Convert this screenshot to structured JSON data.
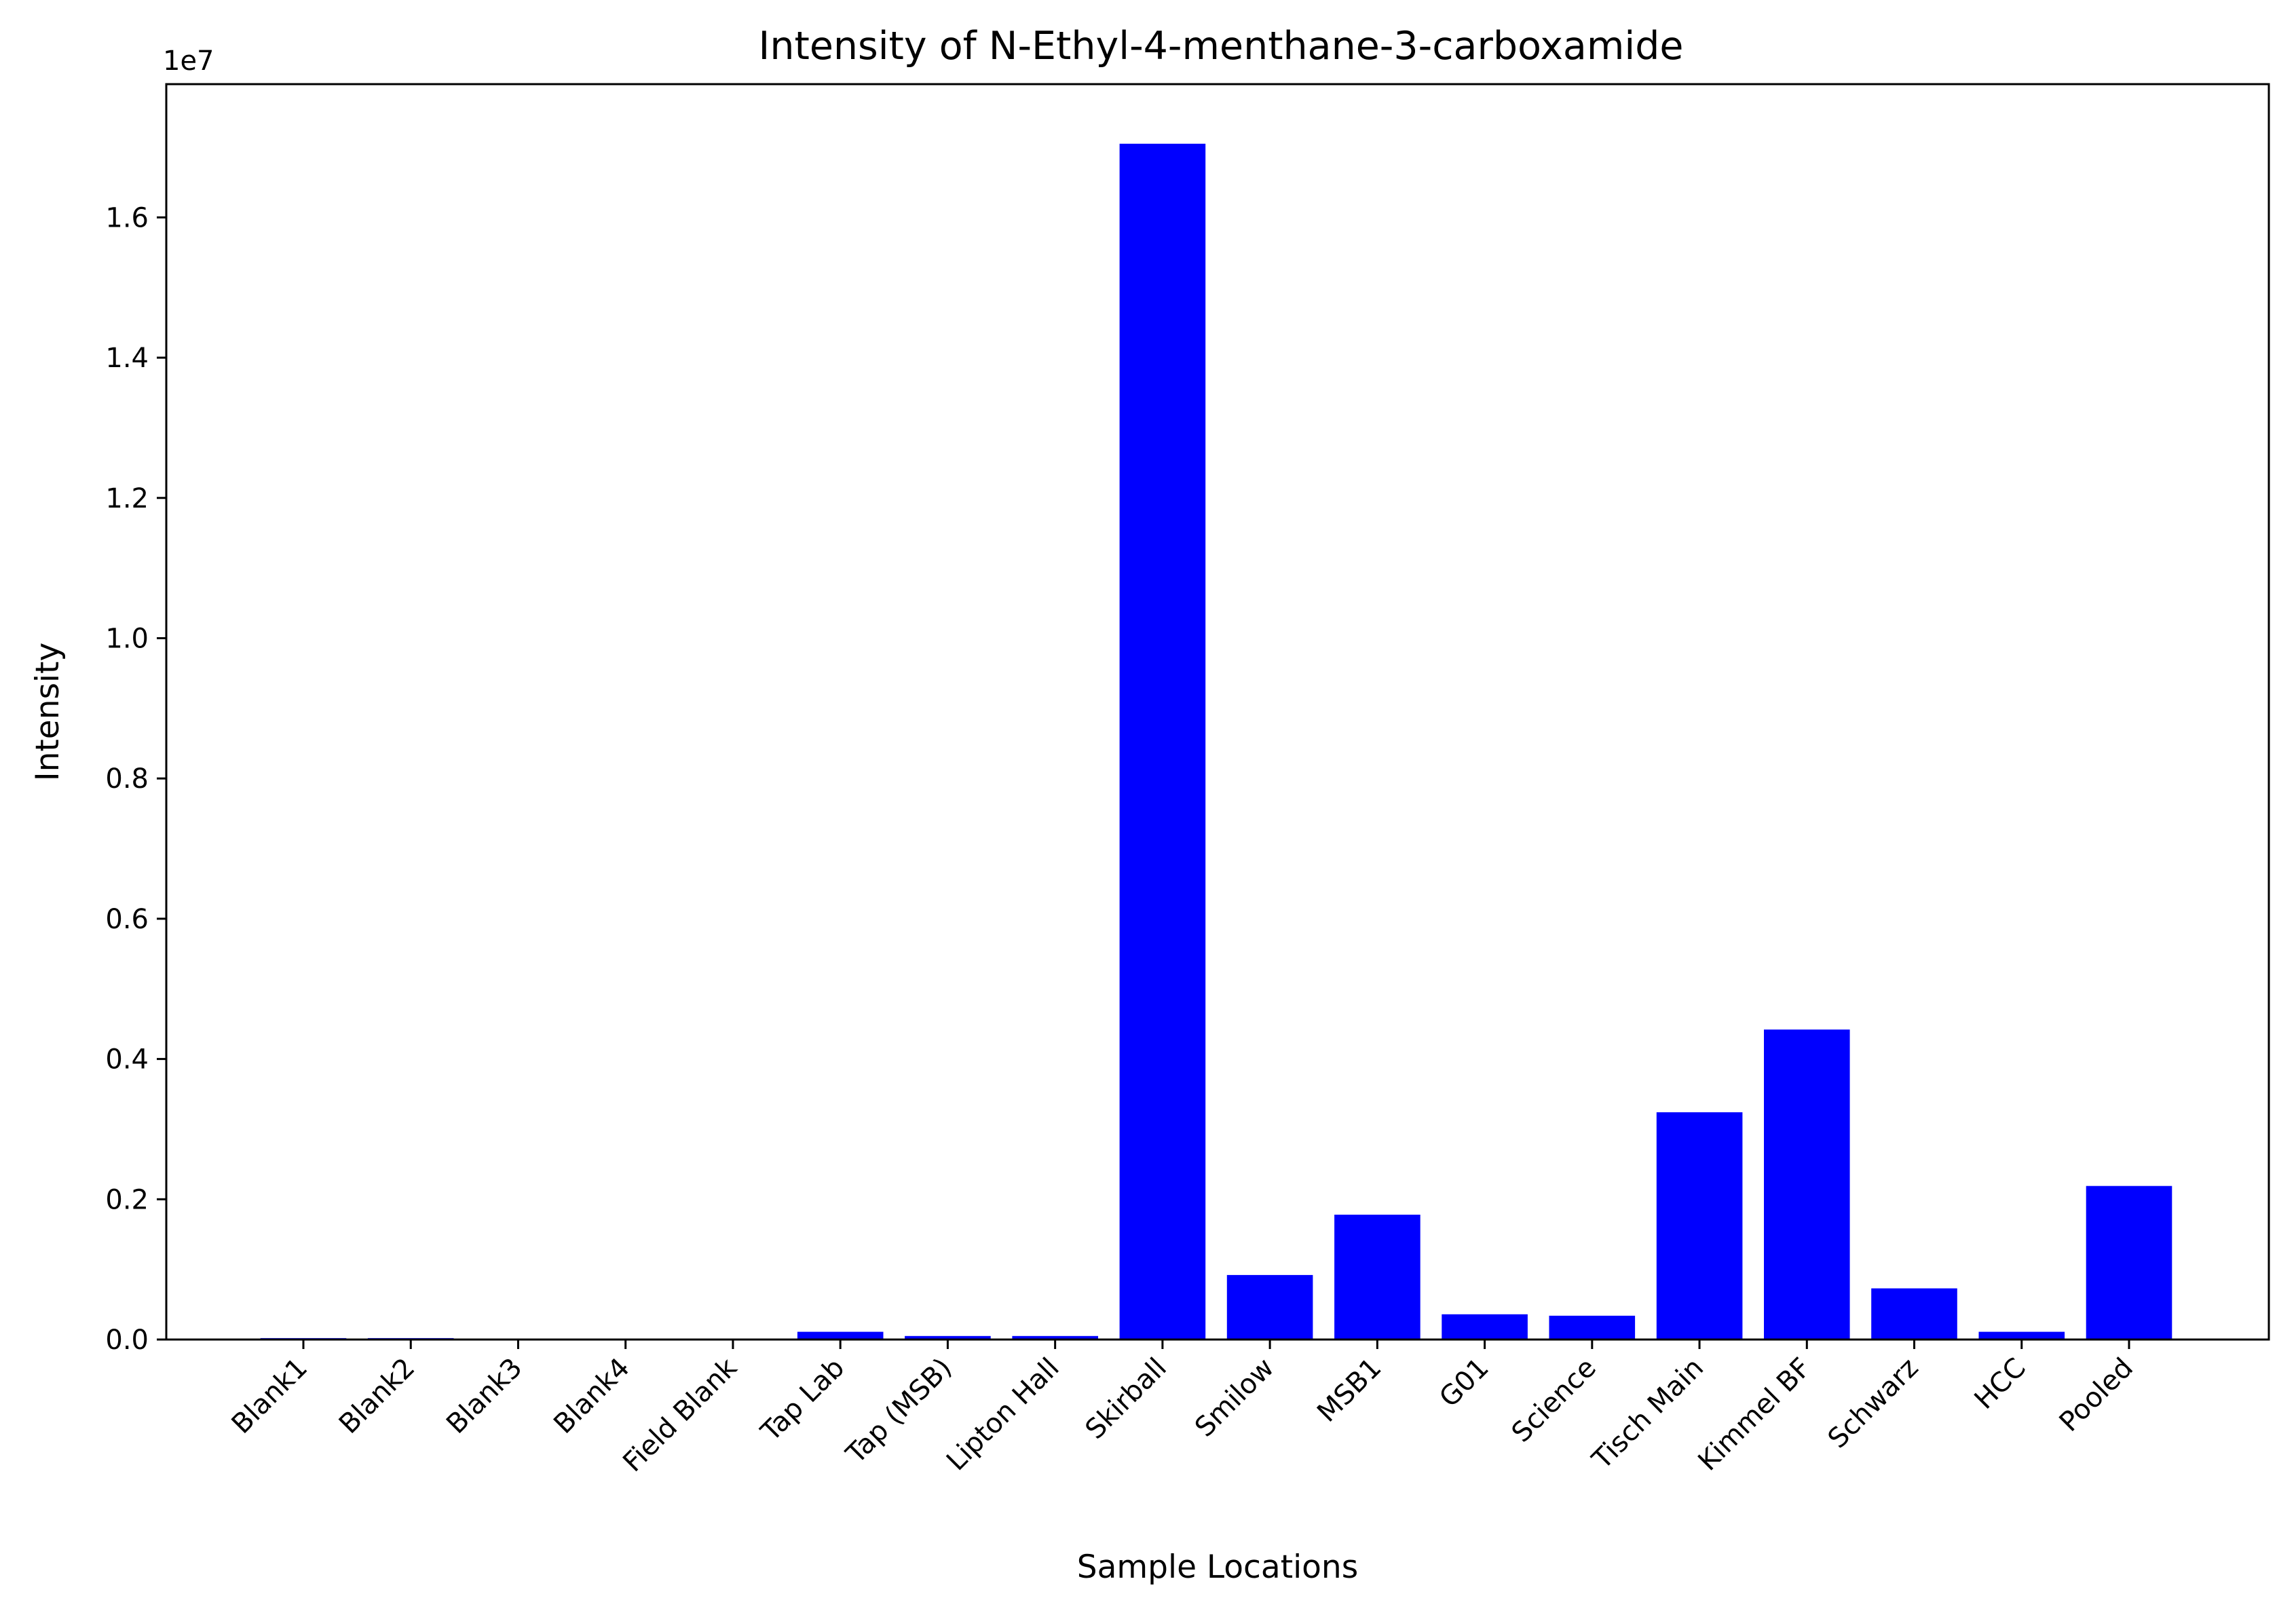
{
  "chart_data": {
    "type": "bar",
    "title": "Intensity of N-Ethyl-4-menthane-3-carboxamide",
    "xlabel": "Sample Locations",
    "ylabel": "Intensity",
    "offset_label": "1e7",
    "categories": [
      "Blank1",
      "Blank2",
      "Blank3",
      "Blank4",
      "Field Blank",
      "Tap Lab",
      "Tap (MSB)",
      "Lipton Hall",
      "Skirball",
      "Smilow",
      "MSB1",
      "G01",
      "Science",
      "Tisch Main",
      "Kimmel BF",
      "Schwarz",
      "HCC",
      "Pooled"
    ],
    "values": [
      20000,
      20000,
      0,
      0,
      0,
      110000,
      50000,
      50000,
      17050000,
      920000,
      1780000,
      360000,
      340000,
      3240000,
      4420000,
      730000,
      110000,
      2190000
    ],
    "ylim": [
      0,
      17900000
    ],
    "yticks": [
      0,
      2000000,
      4000000,
      6000000,
      8000000,
      10000000,
      12000000,
      14000000,
      16000000
    ],
    "ytick_labels": [
      "0.0",
      "0.2",
      "0.4",
      "0.6",
      "0.8",
      "1.0",
      "1.2",
      "1.4",
      "1.6"
    ],
    "bar_color": "#0000ff",
    "grid": false,
    "legend": "none"
  }
}
